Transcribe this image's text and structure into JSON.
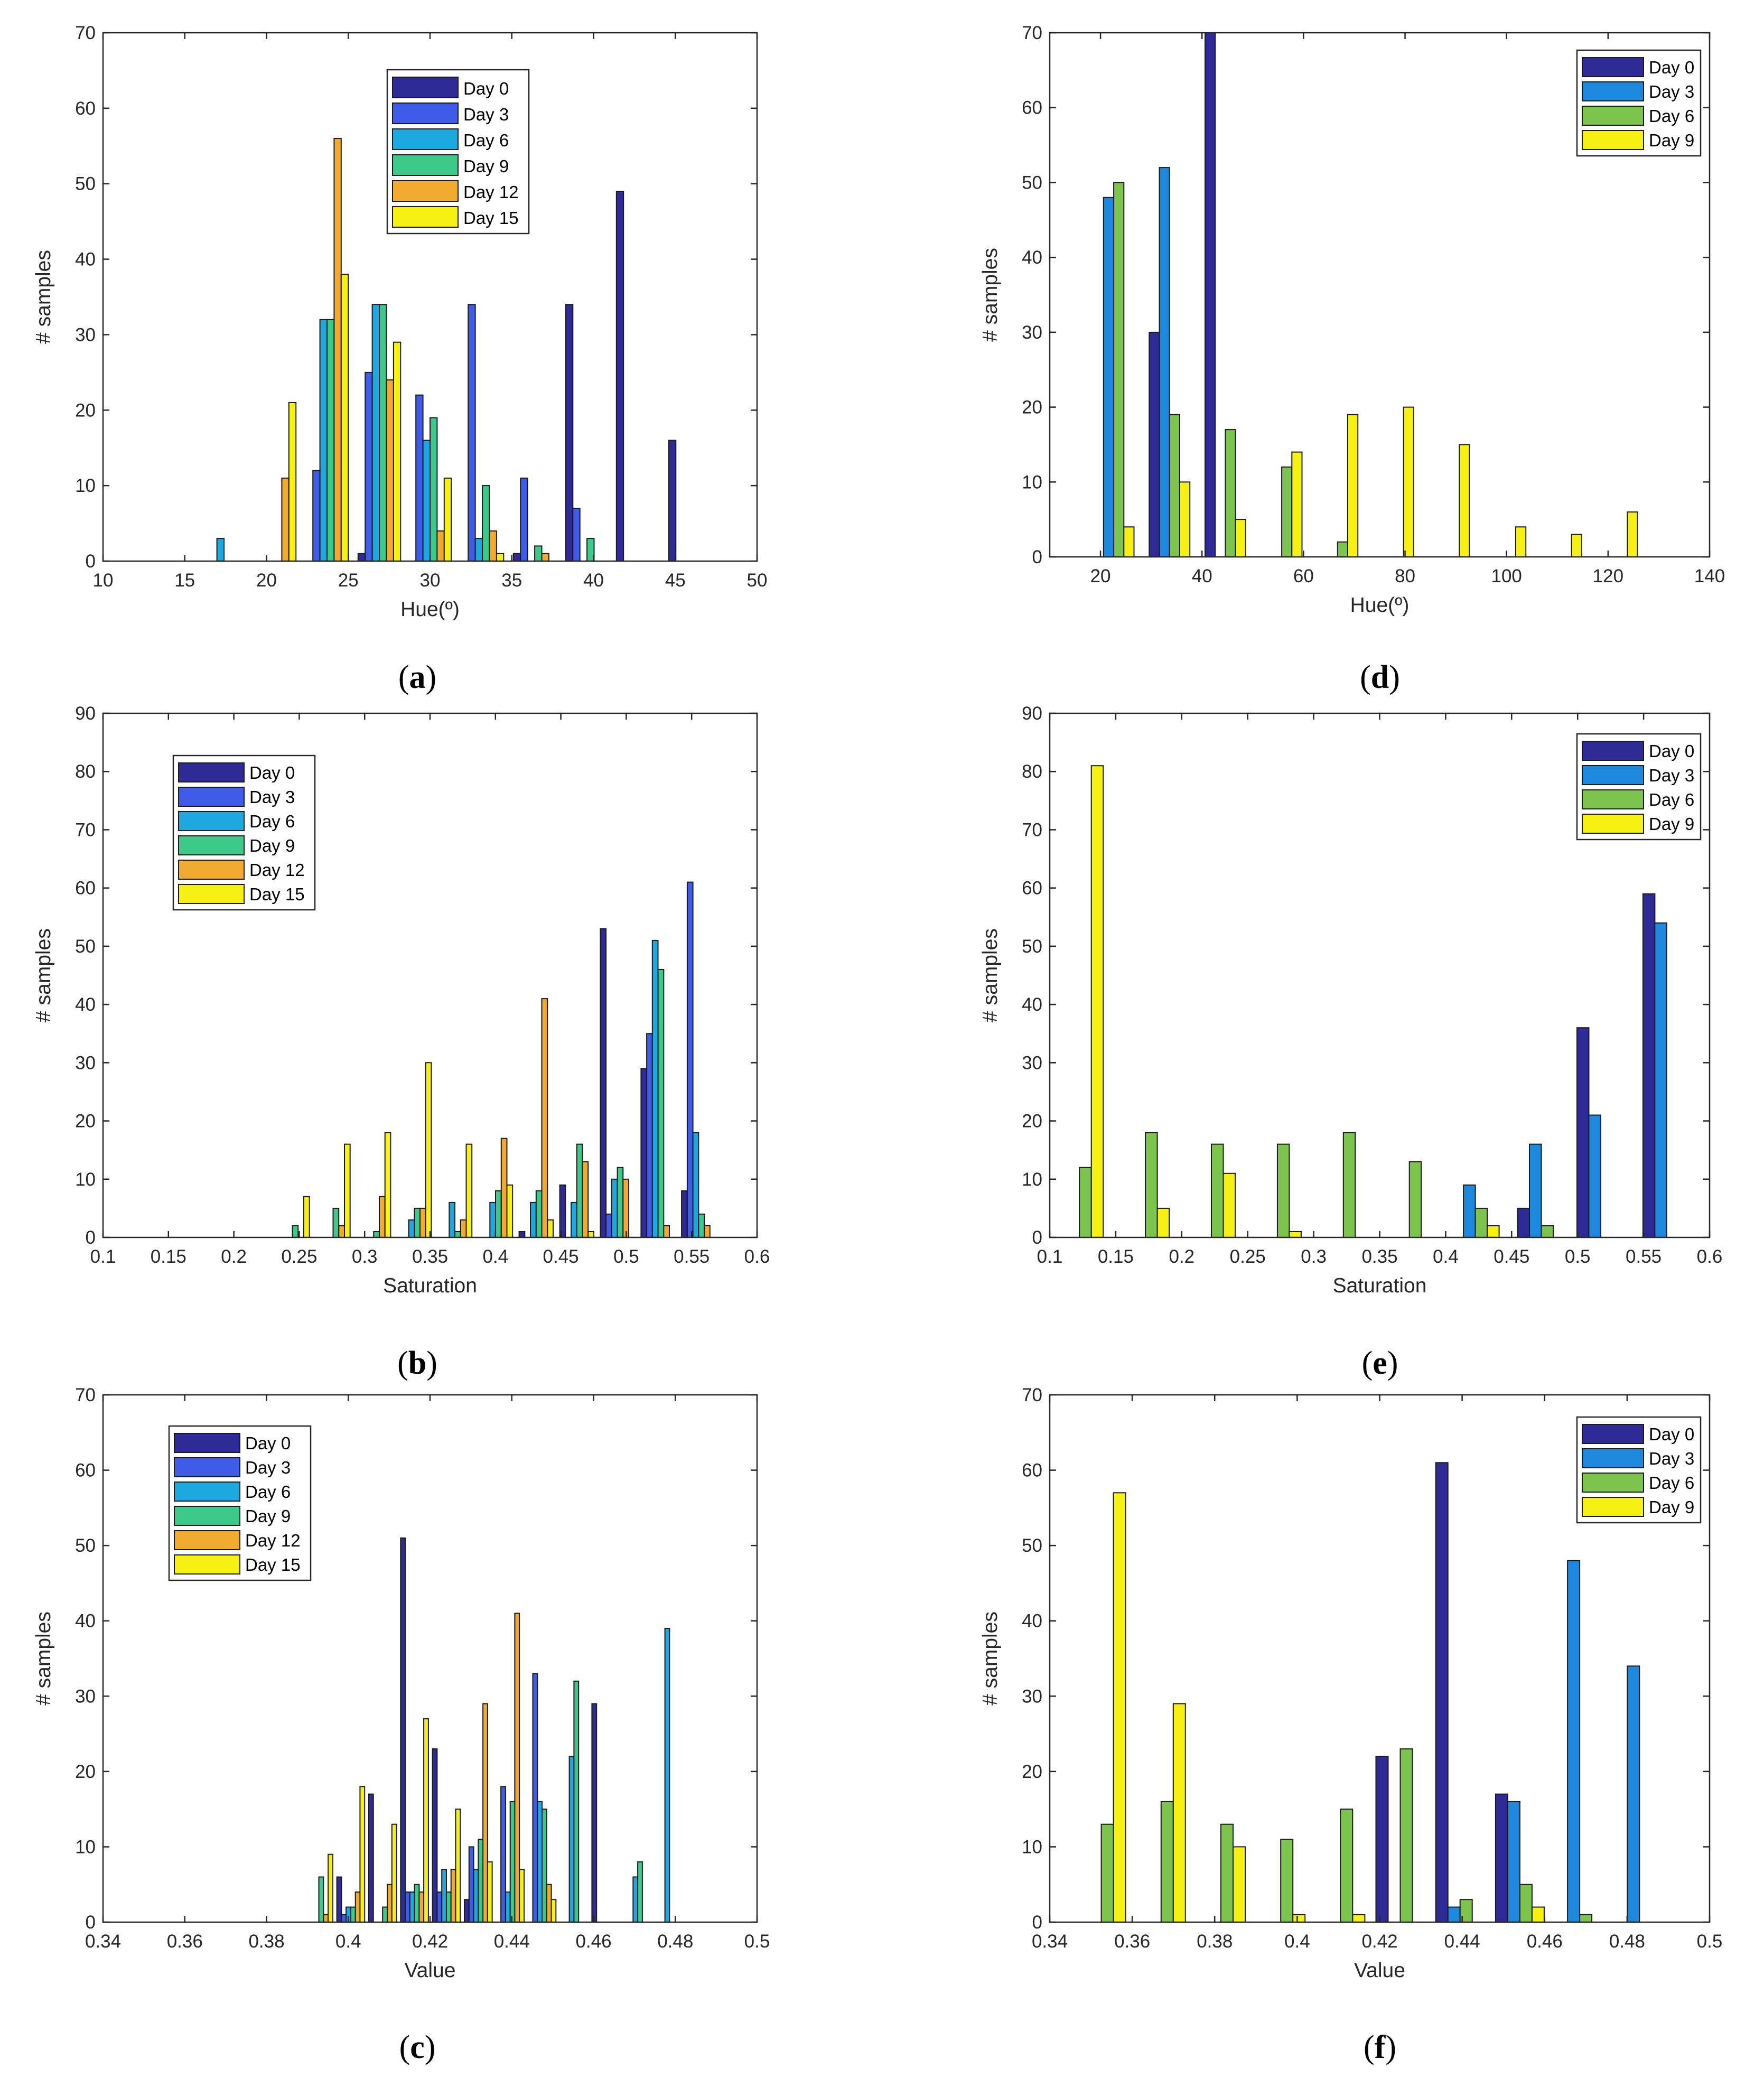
{
  "figure": {
    "description_labels": [
      "(a)",
      "(b)",
      "(c)",
      "(d)",
      "(e)",
      "(f)"
    ]
  },
  "chart_data": [
    {
      "id": "a",
      "panel_label": "a",
      "type": "bar",
      "xlabel": "Hue(º)",
      "ylabel": "# samples",
      "xlim": [
        10,
        50
      ],
      "ylim": [
        0,
        70
      ],
      "xticks": [
        10,
        15,
        20,
        25,
        30,
        35,
        40,
        45,
        50
      ],
      "yticks": [
        0,
        10,
        20,
        30,
        40,
        50,
        60,
        70
      ],
      "xtick_labels": [
        "10",
        "15",
        "20",
        "25",
        "30",
        "35",
        "40",
        "45",
        "50"
      ],
      "ytick_labels": [
        "0",
        "10",
        "20",
        "30",
        "40",
        "50",
        "60",
        "70"
      ],
      "bin_centers": [
        14.2,
        17.4,
        20.5,
        23.7,
        26.9,
        30.0,
        33.2,
        36.4,
        39.6,
        42.7,
        45.9
      ],
      "group_width": 2.6,
      "legend_position": "top-center",
      "series": [
        {
          "name": "Day 0",
          "color": "#2e2a96",
          "values": [
            0,
            0,
            0,
            0,
            1,
            0,
            0,
            1,
            34,
            49,
            16
          ]
        },
        {
          "name": "Day 3",
          "color": "#3f5ce8",
          "values": [
            0,
            0,
            0,
            12,
            25,
            22,
            34,
            11,
            7,
            0,
            0
          ]
        },
        {
          "name": "Day 6",
          "color": "#1ea8e0",
          "values": [
            0,
            3,
            0,
            32,
            34,
            16,
            3,
            0,
            0,
            0,
            0
          ]
        },
        {
          "name": "Day 9",
          "color": "#3cc98a",
          "values": [
            0,
            0,
            0,
            32,
            34,
            19,
            10,
            2,
            3,
            0,
            0
          ]
        },
        {
          "name": "Day 12",
          "color": "#f0aa30",
          "values": [
            0,
            0,
            11,
            56,
            24,
            4,
            4,
            1,
            0,
            0,
            0
          ]
        },
        {
          "name": "Day 15",
          "color": "#f6f013",
          "values": [
            0,
            0,
            21,
            38,
            29,
            11,
            1,
            0,
            0,
            0,
            0
          ]
        }
      ]
    },
    {
      "id": "b",
      "panel_label": "b",
      "type": "bar",
      "xlabel": "Saturation",
      "ylabel": "# samples",
      "xlim": [
        0.1,
        0.6
      ],
      "ylim": [
        0,
        90
      ],
      "xticks": [
        0.1,
        0.15,
        0.2,
        0.25,
        0.3,
        0.35,
        0.4,
        0.45,
        0.5,
        0.55,
        0.6
      ],
      "yticks": [
        0,
        10,
        20,
        30,
        40,
        50,
        60,
        70,
        80,
        90
      ],
      "xtick_labels": [
        "0.1",
        "0.15",
        "0.2",
        "0.25",
        "0.3",
        "0.35",
        "0.4",
        "0.45",
        "0.5",
        "0.55",
        "0.6"
      ],
      "ytick_labels": [
        "0",
        "10",
        "20",
        "30",
        "40",
        "50",
        "60",
        "70",
        "80",
        "90"
      ],
      "bin_centers": [
        0.1206,
        0.1517,
        0.1827,
        0.2138,
        0.2448,
        0.2759,
        0.3069,
        0.338,
        0.369,
        0.4001,
        0.4311,
        0.4622,
        0.4932,
        0.5243,
        0.5553
      ],
      "group_width": 0.026,
      "legend_position": "top-left",
      "series": [
        {
          "name": "Day 0",
          "color": "#2e2a96",
          "values": [
            0,
            0,
            0,
            0,
            0,
            0,
            0,
            0,
            0,
            0,
            1,
            9,
            53,
            29,
            8
          ]
        },
        {
          "name": "Day 3",
          "color": "#3f5ce8",
          "values": [
            0,
            0,
            0,
            0,
            0,
            0,
            0,
            0,
            0,
            0,
            0,
            0,
            4,
            35,
            61
          ]
        },
        {
          "name": "Day 6",
          "color": "#1ea8e0",
          "values": [
            0,
            0,
            0,
            0,
            0,
            0,
            0,
            3,
            6,
            6,
            6,
            6,
            10,
            51,
            18
          ]
        },
        {
          "name": "Day 9",
          "color": "#3cc98a",
          "values": [
            0,
            0,
            0,
            0,
            2,
            5,
            1,
            5,
            1,
            8,
            8,
            16,
            12,
            46,
            4
          ]
        },
        {
          "name": "Day 12",
          "color": "#f0aa30",
          "values": [
            0,
            0,
            0,
            0,
            0,
            2,
            7,
            5,
            3,
            17,
            41,
            13,
            10,
            2,
            2
          ]
        },
        {
          "name": "Day 15",
          "color": "#f6f013",
          "values": [
            0,
            0,
            0,
            0,
            7,
            16,
            18,
            30,
            16,
            9,
            3,
            1,
            0,
            0,
            0
          ]
        }
      ]
    },
    {
      "id": "c",
      "panel_label": "c",
      "type": "bar",
      "xlabel": "Value",
      "ylabel": "# samples",
      "xlim": [
        0.34,
        0.5
      ],
      "ylim": [
        0,
        70
      ],
      "xticks": [
        0.34,
        0.36,
        0.38,
        0.4,
        0.42,
        0.44,
        0.46,
        0.48,
        0.5
      ],
      "yticks": [
        0,
        10,
        20,
        30,
        40,
        50,
        60,
        70
      ],
      "xtick_labels": [
        "0.34",
        "0.36",
        "0.38",
        "0.4",
        "0.42",
        "0.44",
        "0.46",
        "0.48",
        "0.5"
      ],
      "ytick_labels": [
        "0",
        "10",
        "20",
        "30",
        "40",
        "50",
        "60",
        "70"
      ],
      "bin_centers": [
        0.3458,
        0.3536,
        0.3614,
        0.3692,
        0.377,
        0.3848,
        0.3928,
        0.4006,
        0.4084,
        0.4162,
        0.424,
        0.4318,
        0.4396,
        0.4474,
        0.4552,
        0.463,
        0.4708,
        0.4786
      ],
      "group_width": 0.0068,
      "legend_position": "top-left",
      "series": [
        {
          "name": "Day 0",
          "color": "#2e2a96",
          "values": [
            0,
            0,
            0,
            0,
            0,
            0,
            0,
            6,
            17,
            51,
            23,
            3,
            0,
            0,
            0,
            29,
            0,
            0
          ]
        },
        {
          "name": "Day 3",
          "color": "#3f5ce8",
          "values": [
            0,
            0,
            0,
            0,
            0,
            0,
            0,
            1,
            0,
            4,
            4,
            10,
            18,
            33,
            0,
            0,
            0,
            0
          ]
        },
        {
          "name": "Day 6",
          "color": "#1ea8e0",
          "values": [
            0,
            0,
            0,
            0,
            0,
            0,
            0,
            2,
            0,
            4,
            7,
            7,
            4,
            16,
            22,
            0,
            6,
            39
          ]
        },
        {
          "name": "Day 9",
          "color": "#3cc98a",
          "values": [
            0,
            0,
            0,
            0,
            0,
            0,
            6,
            2,
            2,
            5,
            4,
            11,
            16,
            15,
            32,
            0,
            8,
            0
          ]
        },
        {
          "name": "Day 12",
          "color": "#f0aa30",
          "values": [
            0,
            0,
            0,
            0,
            0,
            0,
            1,
            4,
            5,
            4,
            7,
            29,
            41,
            5,
            0,
            0,
            0,
            0
          ]
        },
        {
          "name": "Day 15",
          "color": "#f6f013",
          "values": [
            0,
            0,
            0,
            0,
            0,
            0,
            9,
            18,
            13,
            27,
            15,
            8,
            7,
            3,
            0,
            0,
            0,
            0
          ]
        }
      ]
    },
    {
      "id": "d",
      "panel_label": "d",
      "type": "bar",
      "xlabel": "Hue(º)",
      "ylabel": "# samples",
      "xlim": [
        10,
        140
      ],
      "ylim": [
        0,
        70
      ],
      "xticks": [
        20,
        40,
        60,
        80,
        100,
        120,
        140
      ],
      "yticks": [
        0,
        10,
        20,
        30,
        40,
        50,
        60,
        70
      ],
      "xtick_labels": [
        "20",
        "40",
        "60",
        "80",
        "100",
        "120",
        "140"
      ],
      "ytick_labels": [
        "0",
        "10",
        "20",
        "30",
        "40",
        "50",
        "60",
        "70"
      ],
      "bin_centers": [
        22.6,
        33.6,
        44.6,
        55.7,
        66.7,
        77.7,
        88.7,
        99.8,
        110.8,
        121.8
      ],
      "group_width": 8.0,
      "legend_position": "top-right",
      "series": [
        {
          "name": "Day 0",
          "color": "#2e2a96",
          "values": [
            0,
            30,
            70,
            0,
            0,
            0,
            0,
            0,
            0,
            0
          ]
        },
        {
          "name": "Day 3",
          "color": "#1e88dd",
          "values": [
            48,
            52,
            0,
            0,
            0,
            0,
            0,
            0,
            0,
            0
          ]
        },
        {
          "name": "Day 6",
          "color": "#7cc44e",
          "values": [
            50,
            19,
            17,
            12,
            2,
            0,
            0,
            0,
            0,
            0
          ]
        },
        {
          "name": "Day 9",
          "color": "#f6f013",
          "values": [
            4,
            10,
            5,
            14,
            19,
            20,
            15,
            4,
            3,
            6
          ]
        }
      ]
    },
    {
      "id": "e",
      "panel_label": "e",
      "type": "bar",
      "xlabel": "Saturation",
      "ylabel": "# samples",
      "xlim": [
        0.1,
        0.6
      ],
      "ylim": [
        0,
        90
      ],
      "xticks": [
        0.1,
        0.15,
        0.2,
        0.25,
        0.3,
        0.35,
        0.4,
        0.45,
        0.5,
        0.55,
        0.6
      ],
      "yticks": [
        0,
        10,
        20,
        30,
        40,
        50,
        60,
        70,
        80,
        90
      ],
      "xtick_labels": [
        "0.1",
        "0.15",
        "0.2",
        "0.25",
        "0.3",
        "0.35",
        "0.4",
        "0.45",
        "0.5",
        "0.55",
        "0.6"
      ],
      "ytick_labels": [
        "0",
        "10",
        "20",
        "30",
        "40",
        "50",
        "60",
        "70",
        "80",
        "90"
      ],
      "bin_centers": [
        0.1225,
        0.1725,
        0.2225,
        0.2725,
        0.3225,
        0.3725,
        0.4225,
        0.4725,
        0.5175,
        0.5675
      ],
      "group_width": 0.036,
      "legend_position": "top-right",
      "series": [
        {
          "name": "Day 0",
          "color": "#2e2a96",
          "values": [
            0,
            0,
            0,
            0,
            0,
            0,
            0,
            5,
            36,
            59
          ]
        },
        {
          "name": "Day 3",
          "color": "#1e88dd",
          "values": [
            0,
            0,
            0,
            0,
            0,
            0,
            9,
            16,
            21,
            54
          ]
        },
        {
          "name": "Day 6",
          "color": "#7cc44e",
          "values": [
            12,
            18,
            16,
            16,
            18,
            13,
            5,
            2,
            0,
            0
          ]
        },
        {
          "name": "Day 9",
          "color": "#f6f013",
          "values": [
            81,
            5,
            11,
            1,
            0,
            0,
            2,
            0,
            0,
            0
          ]
        }
      ]
    },
    {
      "id": "f",
      "panel_label": "f",
      "type": "bar",
      "xlabel": "Value",
      "ylabel": "# samples",
      "xlim": [
        0.34,
        0.5
      ],
      "ylim": [
        0,
        70
      ],
      "xticks": [
        0.34,
        0.36,
        0.38,
        0.4,
        0.42,
        0.44,
        0.46,
        0.48,
        0.5
      ],
      "yticks": [
        0,
        10,
        20,
        30,
        40,
        50,
        60,
        70
      ],
      "xtick_labels": [
        "0.34",
        "0.36",
        "0.38",
        "0.4",
        "0.42",
        "0.44",
        "0.46",
        "0.48",
        "0.5"
      ],
      "ytick_labels": [
        "0",
        "10",
        "20",
        "30",
        "40",
        "50",
        "60",
        "70"
      ],
      "bin_centers": [
        0.3525,
        0.367,
        0.3815,
        0.396,
        0.4105,
        0.425,
        0.4395,
        0.454,
        0.4685,
        0.483
      ],
      "group_width": 0.0118,
      "legend_position": "top-right",
      "series": [
        {
          "name": "Day 0",
          "color": "#2e2a96",
          "values": [
            0,
            0,
            0,
            0,
            0,
            22,
            61,
            17,
            0,
            0
          ]
        },
        {
          "name": "Day 3",
          "color": "#1e88dd",
          "values": [
            0,
            0,
            0,
            0,
            0,
            0,
            2,
            16,
            48,
            34
          ]
        },
        {
          "name": "Day 6",
          "color": "#7cc44e",
          "values": [
            13,
            16,
            13,
            11,
            15,
            23,
            3,
            5,
            1,
            0
          ]
        },
        {
          "name": "Day 9",
          "color": "#f6f013",
          "values": [
            57,
            29,
            10,
            1,
            1,
            0,
            0,
            2,
            0,
            0
          ]
        }
      ]
    }
  ]
}
